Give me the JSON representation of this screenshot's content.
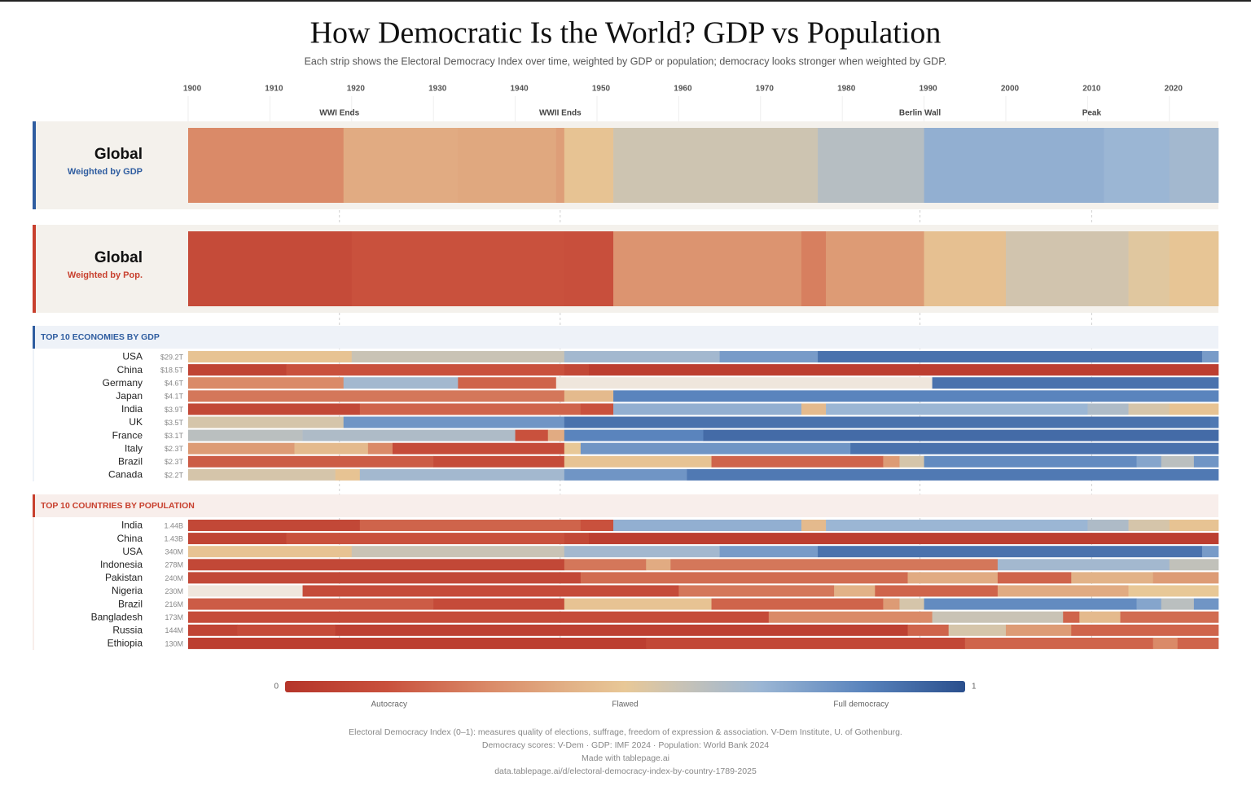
{
  "chart_data": {
    "type": "heatstrip",
    "title": "How Democratic Is the World? GDP vs Population",
    "subtitle": "Each strip shows the Electoral Democracy Index over time, weighted by GDP or population; democracy looks stronger when weighted by GDP.",
    "xlim": [
      1900,
      2026
    ],
    "xticks": [
      1900,
      1910,
      1920,
      1930,
      1940,
      1950,
      1960,
      1970,
      1980,
      1990,
      2000,
      2010,
      2020
    ],
    "events": [
      {
        "year": 1918,
        "label": "WWI Ends"
      },
      {
        "year": 1945,
        "label": "WWII Ends"
      },
      {
        "year": 1989,
        "label": "Berlin Wall"
      },
      {
        "year": 2010,
        "label": "Peak"
      }
    ],
    "color_scale": [
      {
        "value": 0,
        "color": "#b5352a"
      },
      {
        "value": 0.15,
        "color": "#c9513d"
      },
      {
        "value": 0.3,
        "color": "#da8a68"
      },
      {
        "value": 0.42,
        "color": "#e2b287"
      },
      {
        "value": 0.5,
        "color": "#e8c897"
      },
      {
        "value": 0.58,
        "color": "#c9c3b5"
      },
      {
        "value": 0.7,
        "color": "#9bb6d4"
      },
      {
        "value": 0.85,
        "color": "#5a84bd"
      },
      {
        "value": 1,
        "color": "#2a4f8d"
      }
    ],
    "no_data_color": "#efe6dc",
    "panels": [
      {
        "title": "Global",
        "subtitle": "Weighted by GDP",
        "color": "#2f5da0",
        "years": [
          1900,
          1919,
          1933,
          1945,
          1946,
          1952,
          1977,
          1990,
          2012,
          2020
        ],
        "values": [
          0.3,
          0.4,
          0.39,
          0.36,
          0.48,
          0.57,
          0.63,
          0.72,
          0.7,
          0.68
        ]
      },
      {
        "title": "Global",
        "subtitle": "Weighted by Pop.",
        "color": "#c8402e",
        "years": [
          1900,
          1920,
          1946,
          1952,
          1975,
          1978,
          1990,
          2000,
          2015,
          2020
        ],
        "values": [
          0.12,
          0.15,
          0.14,
          0.33,
          0.27,
          0.35,
          0.47,
          0.56,
          0.52,
          0.49
        ]
      }
    ],
    "sections": [
      {
        "title": "TOP 10 ECONOMIES BY GDP",
        "color": "#2f5da0",
        "background": "#eef2f8",
        "rows": [
          {
            "name": "USA",
            "metric": "$29.2T",
            "years": [
              1900,
              1920,
              1946,
              1965,
              1977,
              2024
            ],
            "values": [
              0.48,
              0.58,
              0.68,
              0.78,
              0.9,
              0.78
            ]
          },
          {
            "name": "China",
            "metric": "$18.5T",
            "years": [
              1900,
              1912,
              1946,
              1949
            ],
            "values": [
              0.08,
              0.15,
              0.1,
              0.05
            ]
          },
          {
            "name": "Germany",
            "metric": "$4.6T",
            "years": [
              1900,
              1919,
              1933,
              1945,
              1991
            ],
            "values": [
              0.3,
              0.68,
              0.2,
              null,
              0.9
            ]
          },
          {
            "name": "Japan",
            "metric": "$4.1T",
            "years": [
              1900,
              1946,
              1952
            ],
            "values": [
              0.25,
              0.45,
              0.85
            ]
          },
          {
            "name": "India",
            "metric": "$3.9T",
            "years": [
              1900,
              1921,
              1948,
              1952,
              1975,
              1978,
              2010,
              2015,
              2020
            ],
            "values": [
              0.1,
              0.2,
              0.15,
              0.72,
              0.45,
              0.7,
              0.65,
              0.55,
              0.48
            ]
          },
          {
            "name": "UK",
            "metric": "$3.5T",
            "years": [
              1900,
              1919,
              1946,
              2025
            ],
            "values": [
              0.55,
              0.8,
              0.9,
              0.88
            ]
          },
          {
            "name": "France",
            "metric": "$3.1T",
            "years": [
              1900,
              1914,
              1940,
              1944,
              1946,
              1963
            ],
            "values": [
              0.62,
              0.65,
              0.15,
              0.4,
              0.85,
              0.92
            ]
          },
          {
            "name": "Italy",
            "metric": "$2.3T",
            "years": [
              1900,
              1913,
              1922,
              1925,
              1946,
              1948,
              1981
            ],
            "values": [
              0.35,
              0.45,
              0.3,
              0.12,
              0.5,
              0.8,
              0.9
            ]
          },
          {
            "name": "Brazil",
            "metric": "$2.3T",
            "years": [
              1900,
              1930,
              1946,
              1964,
              1985,
              1987,
              1990,
              2016,
              2019,
              2023
            ],
            "values": [
              0.18,
              0.12,
              0.48,
              0.2,
              0.35,
              0.55,
              0.83,
              0.75,
              0.62,
              0.8
            ]
          },
          {
            "name": "Canada",
            "metric": "$2.2T",
            "years": [
              1900,
              1918,
              1921,
              1946,
              1961
            ],
            "values": [
              0.55,
              0.48,
              0.68,
              0.8,
              0.88
            ]
          }
        ]
      },
      {
        "title": "TOP 10 COUNTRIES BY POPULATION",
        "color": "#c8402e",
        "background": "#f8eeeb",
        "rows": [
          {
            "name": "India",
            "metric": "1.44B",
            "years": [
              1900,
              1921,
              1948,
              1952,
              1975,
              1978,
              2010,
              2015,
              2020
            ],
            "values": [
              0.1,
              0.2,
              0.15,
              0.72,
              0.45,
              0.7,
              0.65,
              0.55,
              0.48
            ]
          },
          {
            "name": "China",
            "metric": "1.43B",
            "years": [
              1900,
              1912,
              1946,
              1949
            ],
            "values": [
              0.08,
              0.15,
              0.1,
              0.05
            ]
          },
          {
            "name": "USA",
            "metric": "340M",
            "years": [
              1900,
              1920,
              1946,
              1965,
              1977,
              2024
            ],
            "values": [
              0.48,
              0.58,
              0.68,
              0.78,
              0.9,
              0.78
            ]
          },
          {
            "name": "Indonesia",
            "metric": "278M",
            "years": [
              1900,
              1946,
              1956,
              1959,
              1999,
              2020
            ],
            "values": [
              0.1,
              0.25,
              0.4,
              0.25,
              0.68,
              0.6
            ]
          },
          {
            "name": "Pakistan",
            "metric": "240M",
            "years": [
              1900,
              1948,
              1988,
              1999,
              2008,
              2018
            ],
            "values": [
              0.1,
              0.22,
              0.4,
              0.2,
              0.42,
              0.35
            ]
          },
          {
            "name": "Nigeria",
            "metric": "230M",
            "years": [
              1900,
              1914,
              1960,
              1979,
              1984,
              1999,
              2015
            ],
            "values": [
              null,
              0.12,
              0.25,
              0.42,
              0.2,
              0.4,
              0.5
            ]
          },
          {
            "name": "Brazil",
            "metric": "216M",
            "years": [
              1900,
              1930,
              1946,
              1964,
              1985,
              1987,
              1990,
              2016,
              2019,
              2023
            ],
            "values": [
              0.18,
              0.12,
              0.48,
              0.2,
              0.35,
              0.55,
              0.83,
              0.75,
              0.62,
              0.8
            ]
          },
          {
            "name": "Bangladesh",
            "metric": "173M",
            "years": [
              1900,
              1971,
              1991,
              2007,
              2009,
              2014
            ],
            "values": [
              0.12,
              0.3,
              0.58,
              0.2,
              0.45,
              0.22
            ]
          },
          {
            "name": "Russia",
            "metric": "144M",
            "years": [
              1900,
              1906,
              1918,
              1988,
              1993,
              2000,
              2008
            ],
            "values": [
              0.08,
              0.12,
              0.06,
              0.2,
              0.55,
              0.35,
              0.2
            ]
          },
          {
            "name": "Ethiopia",
            "metric": "130M",
            "years": [
              1900,
              1956,
              1995,
              2018,
              2021
            ],
            "values": [
              0.05,
              0.1,
              0.2,
              0.3,
              0.2
            ]
          }
        ]
      }
    ],
    "legend": {
      "min": 0,
      "max": 1,
      "labels": [
        "Autocracy",
        "Flawed",
        "Full democracy"
      ]
    },
    "footer": [
      "Electoral Democracy Index (0–1): measures quality of elections, suffrage, freedom of expression & association. V-Dem Institute, U. of Gothenburg.",
      "Democracy scores: V-Dem · GDP: IMF 2024 · Population: World Bank 2024",
      "Made with tablepage.ai",
      "data.tablepage.ai/d/electoral-democracy-index-by-country-1789-2025"
    ]
  }
}
